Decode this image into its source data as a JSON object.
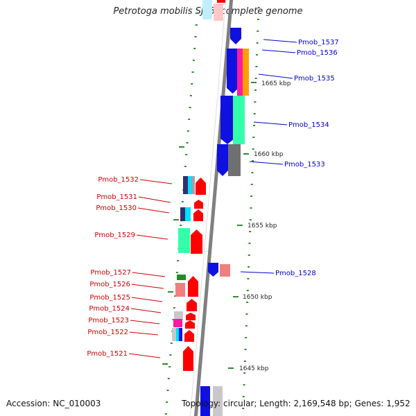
{
  "title": "Petrotoga mobilis SJ95, complete genome",
  "accession": "Accession: NC_010003",
  "topology": "Topology: circular; Length: 2,169,548 bp; Genes: 1,952",
  "scale_labels": [
    "1665 kbp",
    "1660 kbp",
    "1655 kbp",
    "1650 kbp",
    "1645 kbp"
  ],
  "colors": {
    "backbone": "#808080",
    "right_label": "#0000cc",
    "left_label": "#cc0000",
    "tick": "#2e8b2e",
    "blue": "#1010e0",
    "red": "#ff0000",
    "pink": "#f08080",
    "green": "#228b22",
    "teal": "#33ffaa",
    "cyan": "#00e0ff",
    "magenta": "#ff1aa0",
    "orange": "#ffa000",
    "gray": "#707070",
    "navy": "#303070",
    "lightgray": "#c8c8c8"
  },
  "right_genes": [
    {
      "label": "Pmob_1537",
      "color": "blue"
    },
    {
      "label": "Pmob_1536",
      "color": "blue"
    },
    {
      "label": "Pmob_1535",
      "color": "orange"
    },
    {
      "label": "Pmob_1534",
      "color": "teal"
    },
    {
      "label": "Pmob_1533",
      "color": "gray"
    },
    {
      "label": "Pmob_1528",
      "color": "blue"
    }
  ],
  "left_genes": [
    {
      "label": "Pmob_1532",
      "color": "red"
    },
    {
      "label": "Pmob_1531",
      "color": "red"
    },
    {
      "label": "Pmob_1530",
      "color": "red"
    },
    {
      "label": "Pmob_1529",
      "color": "red"
    },
    {
      "label": "Pmob_1527",
      "color": "green"
    },
    {
      "label": "Pmob_1526",
      "color": "pink"
    },
    {
      "label": "Pmob_1525",
      "color": "red"
    },
    {
      "label": "Pmob_1524",
      "color": "red"
    },
    {
      "label": "Pmob_1523",
      "color": "red"
    },
    {
      "label": "Pmob_1522",
      "color": "red"
    },
    {
      "label": "Pmob_1521",
      "color": "red"
    }
  ]
}
